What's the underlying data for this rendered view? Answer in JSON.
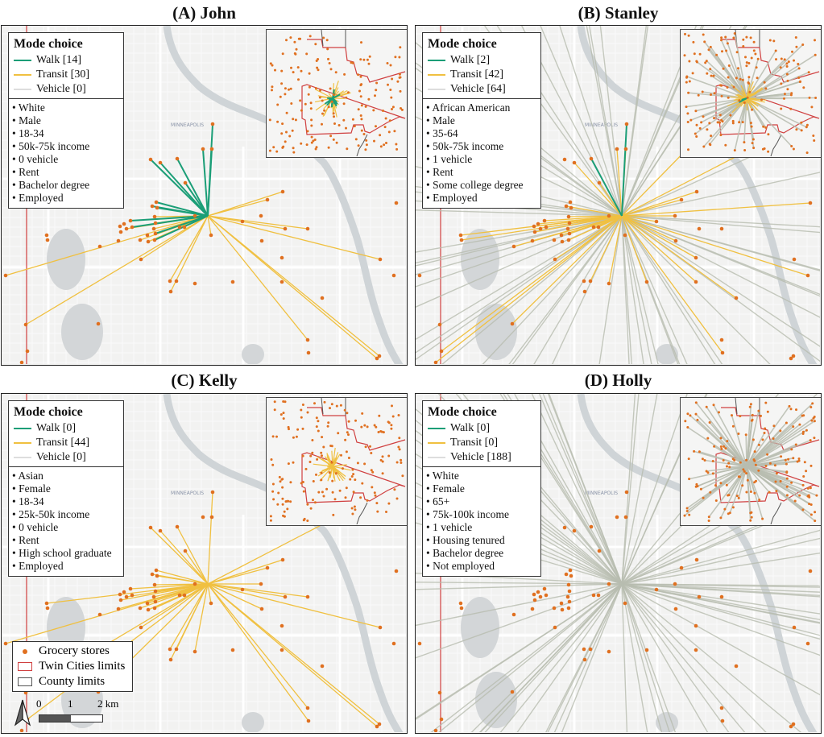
{
  "colors": {
    "walk": "#1b9e77",
    "transit": "#f0c040",
    "vehicle": "#b8bdb0",
    "store": "#e07020",
    "twin_cities": "#d04040",
    "county": "#555555",
    "water": "#d3d6d8"
  },
  "mode_choice_title": "Mode choice",
  "panels": [
    {
      "title": "(A) John",
      "modes": [
        {
          "name": "Walk",
          "count": 14,
          "label": "Walk [14]"
        },
        {
          "name": "Transit",
          "count": 30,
          "label": "Transit [30]"
        },
        {
          "name": "Vehicle",
          "count": 0,
          "label": "Vehicle [0]"
        }
      ],
      "attributes": [
        "• White",
        "• Male",
        "• 18-34",
        "• 50k-75k income",
        "• 0 vehicle",
        "• Rent",
        "• Bachelor degree",
        "• Employed"
      ]
    },
    {
      "title": "(B) Stanley",
      "modes": [
        {
          "name": "Walk",
          "count": 2,
          "label": "Walk [2]"
        },
        {
          "name": "Transit",
          "count": 42,
          "label": "Transit [42]"
        },
        {
          "name": "Vehicle",
          "count": 64,
          "label": "Vehicle [64]"
        }
      ],
      "attributes": [
        "• African American",
        "• Male",
        "• 35-64",
        "• 50k-75k income",
        "• 1 vehicle",
        "• Rent",
        "• Some college degree",
        "• Employed"
      ]
    },
    {
      "title": "(C) Kelly",
      "modes": [
        {
          "name": "Walk",
          "count": 0,
          "label": "Walk [0]"
        },
        {
          "name": "Transit",
          "count": 44,
          "label": "Transit [44]"
        },
        {
          "name": "Vehicle",
          "count": 0,
          "label": "Vehicle [0]"
        }
      ],
      "attributes": [
        "• Asian",
        "• Female",
        "• 18-34",
        "• 25k-50k income",
        "• 0 vehicle",
        "• Rent",
        "• High school graduate",
        "• Employed"
      ]
    },
    {
      "title": "(D) Holly",
      "modes": [
        {
          "name": "Walk",
          "count": 0,
          "label": "Walk [0]"
        },
        {
          "name": "Transit",
          "count": 0,
          "label": "Transit [0]"
        },
        {
          "name": "Vehicle",
          "count": 188,
          "label": "Vehicle [188]"
        }
      ],
      "attributes": [
        "• White",
        "• Female",
        "• 65+",
        "• 75k-100k income",
        "• 1 vehicle",
        "• Housing tenured",
        "• Bachelor degree",
        "• Not employed"
      ]
    }
  ],
  "map_label": "MINNEAPOLIS",
  "map_legend": {
    "items": [
      {
        "symbol": "dot",
        "label": "Grocery stores"
      },
      {
        "symbol": "red-box",
        "label": "Twin Cities limits"
      },
      {
        "symbol": "gray-box",
        "label": "County limits"
      }
    ]
  },
  "scale_bar": {
    "labels": [
      "0",
      "1",
      "2 km"
    ]
  },
  "north_arrow": "north-arrow-icon"
}
